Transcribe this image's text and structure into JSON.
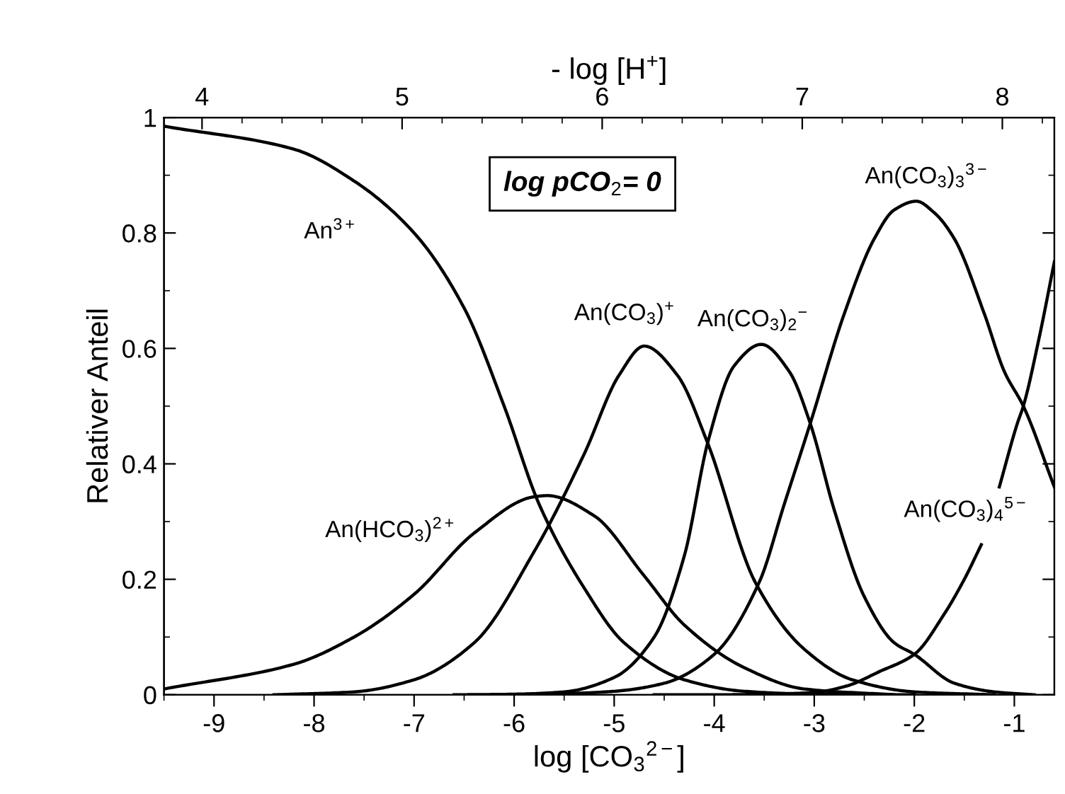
{
  "chart_data": {
    "type": "line",
    "xlabel": "log [CO$_{3}$$^{2−}$]",
    "x2label": "- log [H$^{+}$]",
    "ylabel": "Relativer Anteil",
    "xlim": [
      -9.5,
      -0.6
    ],
    "ylim": [
      0,
      1
    ],
    "x2lim": [
      3.81,
      8.26
    ],
    "xticks": [
      {
        "value": -9.5,
        "label": null
      },
      -9,
      {
        "value": -8.5,
        "label": null
      },
      -8,
      {
        "value": -7.5,
        "label": null
      },
      -7,
      {
        "value": -6.5,
        "label": null
      },
      -6,
      {
        "value": -5.5,
        "label": null
      },
      -5,
      {
        "value": -4.5,
        "label": null
      },
      -4,
      {
        "value": -3.5,
        "label": null
      },
      -3,
      {
        "value": -2.5,
        "label": null
      },
      -2,
      {
        "value": -1.5,
        "label": null
      },
      -1
    ],
    "yticks": [
      0,
      {
        "value": 0.1,
        "label": null
      },
      0.2,
      {
        "value": 0.3,
        "label": null
      },
      0.4,
      {
        "value": 0.5,
        "label": null
      },
      0.6,
      {
        "value": 0.7,
        "label": null
      },
      0.8,
      {
        "value": 0.9,
        "label": null
      },
      1
    ],
    "x2ticks": [
      4,
      {
        "value": 4.2,
        "label": null
      },
      {
        "value": 4.4,
        "label": null
      },
      {
        "value": 4.6,
        "label": null
      },
      {
        "value": 4.8,
        "label": null
      },
      5,
      {
        "value": 5.2,
        "label": null
      },
      {
        "value": 5.4,
        "label": null
      },
      {
        "value": 5.6,
        "label": null
      },
      {
        "value": 5.8,
        "label": null
      },
      6,
      {
        "value": 6.2,
        "label": null
      },
      {
        "value": 6.4,
        "label": null
      },
      {
        "value": 6.6,
        "label": null
      },
      {
        "value": 6.8,
        "label": null
      },
      7,
      {
        "value": 7.2,
        "label": null
      },
      {
        "value": 7.4,
        "label": null
      },
      {
        "value": 7.6,
        "label": null
      },
      {
        "value": 7.8,
        "label": null
      },
      8,
      {
        "value": 8.2,
        "label": null
      }
    ],
    "series": [
      {
        "name": "An$^{3+}$",
        "color": "#000000",
        "x": [
          -9.5,
          -8.2,
          -7.6,
          -7.0,
          -6.5,
          -6.1,
          -5.75,
          -5.3,
          -4.9,
          -4.3,
          -3.7,
          -3.0,
          -2.0
        ],
        "values": [
          0.985,
          0.945,
          0.89,
          0.8,
          0.67,
          0.5,
          0.33,
          0.185,
          0.09,
          0.026,
          0.006,
          0.001,
          0
        ]
      },
      {
        "name": "An(HCO$_{3}$)$^{2+}$",
        "color": "#000000",
        "x": [
          -9.5,
          -8.2,
          -7.6,
          -7.0,
          -6.4,
          -5.8,
          -5.67,
          -5.2,
          -4.7,
          -4.3,
          -3.7,
          -3.1,
          -2.2
        ],
        "values": [
          0.01,
          0.053,
          0.1,
          0.174,
          0.28,
          0.343,
          0.345,
          0.31,
          0.206,
          0.121,
          0.047,
          0.01,
          0
        ]
      },
      {
        "name": "An(CO$_{3}$)$^{+}$",
        "color": "#000000",
        "x": [
          -8.4,
          -7.6,
          -7.0,
          -6.4,
          -5.8,
          -5.3,
          -4.95,
          -4.7,
          -4.37,
          -4.07,
          -3.59,
          -3.1,
          -2.62,
          -2.0,
          -1.2
        ],
        "values": [
          0,
          0.005,
          0.026,
          0.09,
          0.248,
          0.417,
          0.554,
          0.604,
          0.554,
          0.438,
          0.195,
          0.079,
          0.026,
          0.005,
          0
        ]
      },
      {
        "name": "An(CO$_{3}$)$_{2}$$^{−}$",
        "color": "#000000",
        "x": [
          -6.6,
          -6.0,
          -5.5,
          -5.0,
          -4.6,
          -4.3,
          -4.06,
          -3.8,
          -3.53,
          -3.25,
          -3.04,
          -2.8,
          -2.5,
          -2.2,
          -2.0,
          -1.6,
          -1.2,
          -0.8
        ],
        "values": [
          0,
          0.001,
          0.005,
          0.03,
          0.1,
          0.24,
          0.44,
          0.57,
          0.607,
          0.56,
          0.47,
          0.32,
          0.17,
          0.09,
          0.07,
          0.02,
          0.005,
          0
        ]
      },
      {
        "name": "An(CO$_{3}$)$_{3}$$^{3−}$",
        "color": "#000000",
        "x": [
          -6.2,
          -5.5,
          -5.0,
          -4.5,
          -4.0,
          -3.55,
          -3.3,
          -3.04,
          -2.7,
          -2.4,
          -2.2,
          -1.98,
          -1.8,
          -1.6,
          -1.3,
          -1.1,
          -0.91,
          -0.6
        ],
        "values": [
          0,
          0.002,
          0.006,
          0.02,
          0.07,
          0.195,
          0.33,
          0.47,
          0.66,
          0.79,
          0.84,
          0.855,
          0.835,
          0.79,
          0.66,
          0.56,
          0.5,
          0.36
        ]
      },
      {
        "name": "An(CO$_{3}$)$_{4}$$^{5−}$",
        "color": "#000000",
        "x": [
          -4.6,
          -4.0,
          -3.5,
          -3.0,
          -2.68,
          -2.35,
          -2.0,
          -1.7,
          -1.5,
          -1.33,
          -1.24,
          -1.15,
          -0.97,
          -0.91,
          -0.75,
          -0.6
        ],
        "values": [
          0,
          0,
          0.001,
          0.004,
          0.015,
          0.04,
          0.07,
          0.14,
          0.2,
          0.26,
          null,
          0.36,
          0.47,
          0.5,
          0.62,
          0.75
        ]
      }
    ],
    "annotations": [
      "log pCO$_{2}$= 0"
    ]
  }
}
